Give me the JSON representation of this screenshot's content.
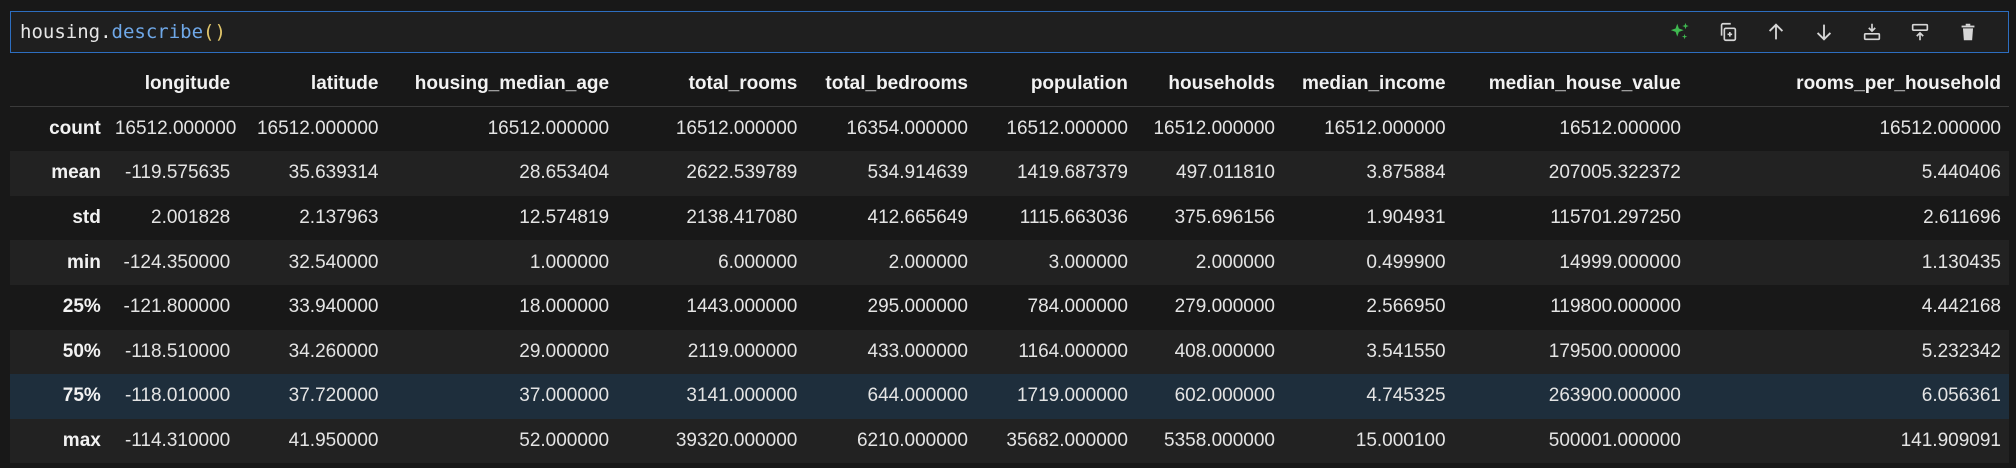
{
  "cell": {
    "code_object": "housing",
    "code_dot": ".",
    "code_method": "describe",
    "code_open": "(",
    "code_close": ")"
  },
  "toolbar": {
    "buttons": [
      "sparkle-icon",
      "copy-icon",
      "arrow-up-icon",
      "arrow-down-icon",
      "insert-below-icon",
      "insert-above-icon",
      "trash-icon"
    ]
  },
  "table": {
    "columns": [
      "",
      "longitude",
      "latitude",
      "housing_median_age",
      "total_rooms",
      "total_bedrooms",
      "population",
      "households",
      "median_income",
      "median_house_value",
      "rooms_per_household"
    ],
    "rows": [
      {
        "label": "count",
        "values": [
          "16512.000000",
          "16512.000000",
          "16512.000000",
          "16512.000000",
          "16354.000000",
          "16512.000000",
          "16512.000000",
          "16512.000000",
          "16512.000000",
          "16512.000000"
        ]
      },
      {
        "label": "mean",
        "values": [
          "-119.575635",
          "35.639314",
          "28.653404",
          "2622.539789",
          "534.914639",
          "1419.687379",
          "497.011810",
          "3.875884",
          "207005.322372",
          "5.440406"
        ]
      },
      {
        "label": "std",
        "values": [
          "2.001828",
          "2.137963",
          "12.574819",
          "2138.417080",
          "412.665649",
          "1115.663036",
          "375.696156",
          "1.904931",
          "115701.297250",
          "2.611696"
        ]
      },
      {
        "label": "min",
        "values": [
          "-124.350000",
          "32.540000",
          "1.000000",
          "6.000000",
          "2.000000",
          "3.000000",
          "2.000000",
          "0.499900",
          "14999.000000",
          "1.130435"
        ]
      },
      {
        "label": "25%",
        "values": [
          "-121.800000",
          "33.940000",
          "18.000000",
          "1443.000000",
          "295.000000",
          "784.000000",
          "279.000000",
          "2.566950",
          "119800.000000",
          "4.442168"
        ]
      },
      {
        "label": "50%",
        "values": [
          "-118.510000",
          "34.260000",
          "29.000000",
          "2119.000000",
          "433.000000",
          "1164.000000",
          "408.000000",
          "3.541550",
          "179500.000000",
          "5.232342"
        ]
      },
      {
        "label": "75%",
        "values": [
          "-118.010000",
          "37.720000",
          "37.000000",
          "3141.000000",
          "644.000000",
          "1719.000000",
          "602.000000",
          "4.745325",
          "263900.000000",
          "6.056361"
        ]
      },
      {
        "label": "max",
        "values": [
          "-114.310000",
          "41.950000",
          "52.000000",
          "39320.000000",
          "6210.000000",
          "35682.000000",
          "5358.000000",
          "15.000100",
          "500001.000000",
          "141.909091"
        ]
      }
    ],
    "highlighted_row": "75%"
  },
  "colors": {
    "accent_border": "#2d6ec0",
    "sparkle": "#3fb950",
    "hover_row": "#1e2e3c"
  }
}
